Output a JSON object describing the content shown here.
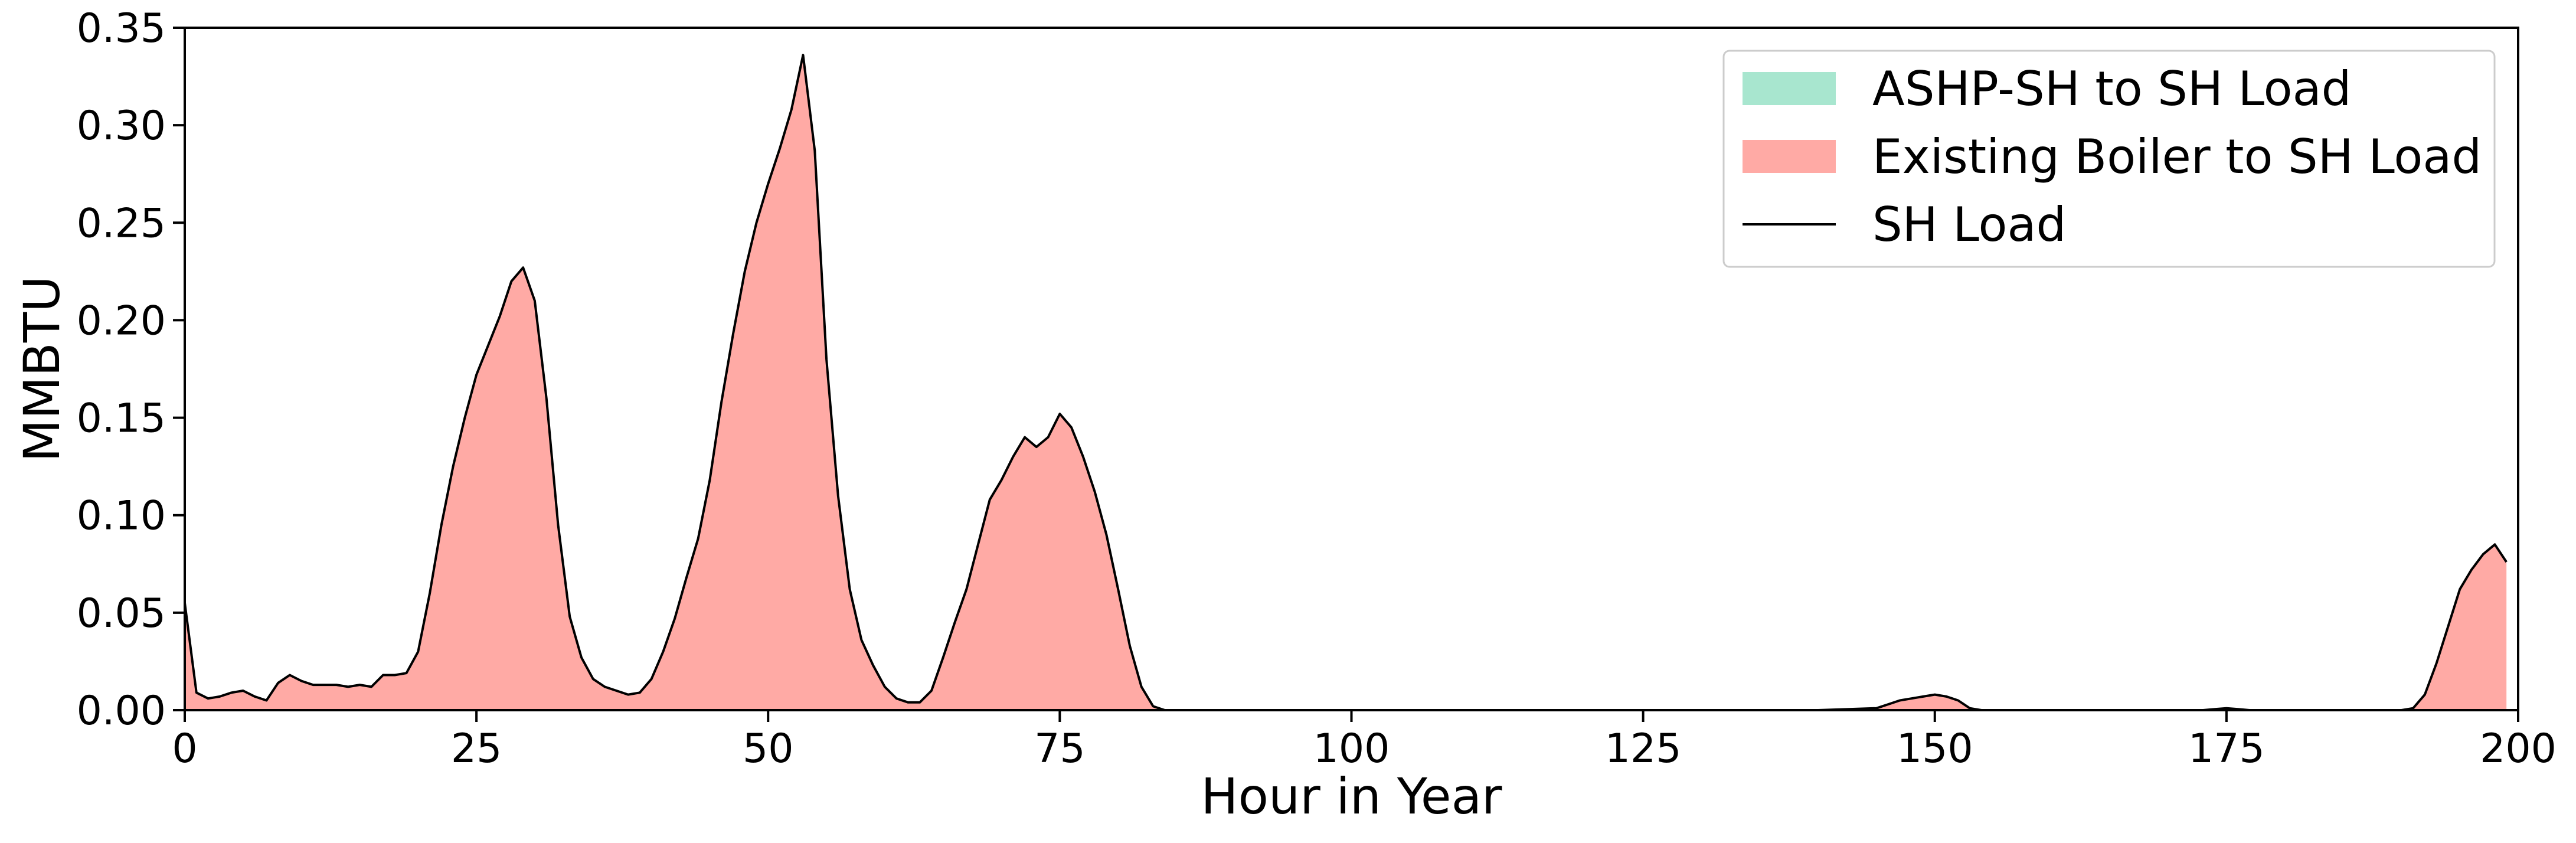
{
  "chart_data": {
    "type": "area",
    "title": "",
    "xlabel": "Hour in Year",
    "ylabel": "MMBTU",
    "xlim": [
      0,
      200
    ],
    "ylim": [
      0,
      0.35
    ],
    "x_ticks": [
      0,
      25,
      50,
      75,
      100,
      125,
      150,
      175,
      200
    ],
    "x_tick_labels": [
      "0",
      "25",
      "50",
      "75",
      "100",
      "125",
      "150",
      "175",
      "200"
    ],
    "y_ticks": [
      0,
      0.05,
      0.1,
      0.15,
      0.2,
      0.25,
      0.3,
      0.35
    ],
    "y_tick_labels": [
      "0.00",
      "0.05",
      "0.10",
      "0.15",
      "0.20",
      "0.25",
      "0.30",
      "0.35"
    ],
    "grid": false,
    "legend_position": "top-right",
    "colors": {
      "ashp": "#a8e6cf",
      "boiler": "#ffaaa5",
      "load": "#000000"
    },
    "series": [
      {
        "name": "ASHP-SH to SH Load",
        "kind": "area",
        "x": [
          0,
          199
        ],
        "values": [
          0,
          0
        ]
      },
      {
        "name": "Existing Boiler to SH Load",
        "kind": "area",
        "x": [
          0,
          1,
          2,
          3,
          4,
          5,
          6,
          7,
          8,
          9,
          10,
          11,
          12,
          13,
          14,
          15,
          16,
          17,
          18,
          19,
          20,
          21,
          22,
          23,
          24,
          25,
          26,
          27,
          28,
          29,
          30,
          31,
          32,
          33,
          34,
          35,
          36,
          37,
          38,
          39,
          40,
          41,
          42,
          43,
          44,
          45,
          46,
          47,
          48,
          49,
          50,
          51,
          52,
          53,
          54,
          55,
          56,
          57,
          58,
          59,
          60,
          61,
          62,
          63,
          64,
          65,
          66,
          67,
          68,
          69,
          70,
          71,
          72,
          73,
          74,
          75,
          76,
          77,
          78,
          79,
          80,
          81,
          82,
          83,
          84,
          85,
          90,
          100,
          110,
          120,
          130,
          140,
          145,
          146,
          147,
          148,
          149,
          150,
          151,
          152,
          153,
          154,
          160,
          170,
          173,
          174,
          175,
          176,
          177,
          180,
          185,
          190,
          191,
          192,
          193,
          194,
          195,
          196,
          197,
          198,
          199
        ],
        "values": [
          0.055,
          0.009,
          0.006,
          0.007,
          0.009,
          0.01,
          0.007,
          0.005,
          0.014,
          0.018,
          0.015,
          0.013,
          0.013,
          0.013,
          0.012,
          0.013,
          0.012,
          0.018,
          0.018,
          0.019,
          0.03,
          0.06,
          0.095,
          0.125,
          0.15,
          0.172,
          0.187,
          0.202,
          0.22,
          0.227,
          0.21,
          0.16,
          0.095,
          0.048,
          0.027,
          0.016,
          0.012,
          0.01,
          0.008,
          0.009,
          0.016,
          0.03,
          0.047,
          0.068,
          0.088,
          0.118,
          0.158,
          0.193,
          0.225,
          0.25,
          0.27,
          0.288,
          0.308,
          0.336,
          0.287,
          0.18,
          0.11,
          0.062,
          0.036,
          0.023,
          0.012,
          0.006,
          0.004,
          0.004,
          0.01,
          0.027,
          0.045,
          0.062,
          0.085,
          0.108,
          0.118,
          0.13,
          0.14,
          0.135,
          0.14,
          0.152,
          0.145,
          0.13,
          0.112,
          0.09,
          0.062,
          0.033,
          0.012,
          0.002,
          0,
          0,
          0,
          0,
          0,
          0,
          0,
          0,
          0.001,
          0.003,
          0.005,
          0.006,
          0.007,
          0.008,
          0.007,
          0.005,
          0.001,
          0,
          0,
          0,
          0,
          0.0005,
          0.001,
          0.0005,
          0,
          0,
          0,
          0,
          0.001,
          0.008,
          0.024,
          0.043,
          0.062,
          0.072,
          0.08,
          0.085,
          0.076
        ]
      },
      {
        "name": "SH Load",
        "kind": "line",
        "x": [
          0,
          1,
          2,
          3,
          4,
          5,
          6,
          7,
          8,
          9,
          10,
          11,
          12,
          13,
          14,
          15,
          16,
          17,
          18,
          19,
          20,
          21,
          22,
          23,
          24,
          25,
          26,
          27,
          28,
          29,
          30,
          31,
          32,
          33,
          34,
          35,
          36,
          37,
          38,
          39,
          40,
          41,
          42,
          43,
          44,
          45,
          46,
          47,
          48,
          49,
          50,
          51,
          52,
          53,
          54,
          55,
          56,
          57,
          58,
          59,
          60,
          61,
          62,
          63,
          64,
          65,
          66,
          67,
          68,
          69,
          70,
          71,
          72,
          73,
          74,
          75,
          76,
          77,
          78,
          79,
          80,
          81,
          82,
          83,
          84,
          85,
          90,
          100,
          110,
          120,
          130,
          140,
          145,
          146,
          147,
          148,
          149,
          150,
          151,
          152,
          153,
          154,
          160,
          170,
          173,
          174,
          175,
          176,
          177,
          180,
          185,
          190,
          191,
          192,
          193,
          194,
          195,
          196,
          197,
          198,
          199
        ],
        "values": [
          0.055,
          0.009,
          0.006,
          0.007,
          0.009,
          0.01,
          0.007,
          0.005,
          0.014,
          0.018,
          0.015,
          0.013,
          0.013,
          0.013,
          0.012,
          0.013,
          0.012,
          0.018,
          0.018,
          0.019,
          0.03,
          0.06,
          0.095,
          0.125,
          0.15,
          0.172,
          0.187,
          0.202,
          0.22,
          0.227,
          0.21,
          0.16,
          0.095,
          0.048,
          0.027,
          0.016,
          0.012,
          0.01,
          0.008,
          0.009,
          0.016,
          0.03,
          0.047,
          0.068,
          0.088,
          0.118,
          0.158,
          0.193,
          0.225,
          0.25,
          0.27,
          0.288,
          0.308,
          0.336,
          0.287,
          0.18,
          0.11,
          0.062,
          0.036,
          0.023,
          0.012,
          0.006,
          0.004,
          0.004,
          0.01,
          0.027,
          0.045,
          0.062,
          0.085,
          0.108,
          0.118,
          0.13,
          0.14,
          0.135,
          0.14,
          0.152,
          0.145,
          0.13,
          0.112,
          0.09,
          0.062,
          0.033,
          0.012,
          0.002,
          0,
          0,
          0,
          0,
          0,
          0,
          0,
          0,
          0.001,
          0.003,
          0.005,
          0.006,
          0.007,
          0.008,
          0.007,
          0.005,
          0.001,
          0,
          0,
          0,
          0,
          0.0005,
          0.001,
          0.0005,
          0,
          0,
          0,
          0,
          0.001,
          0.008,
          0.024,
          0.043,
          0.062,
          0.072,
          0.08,
          0.085,
          0.076
        ]
      }
    ]
  }
}
